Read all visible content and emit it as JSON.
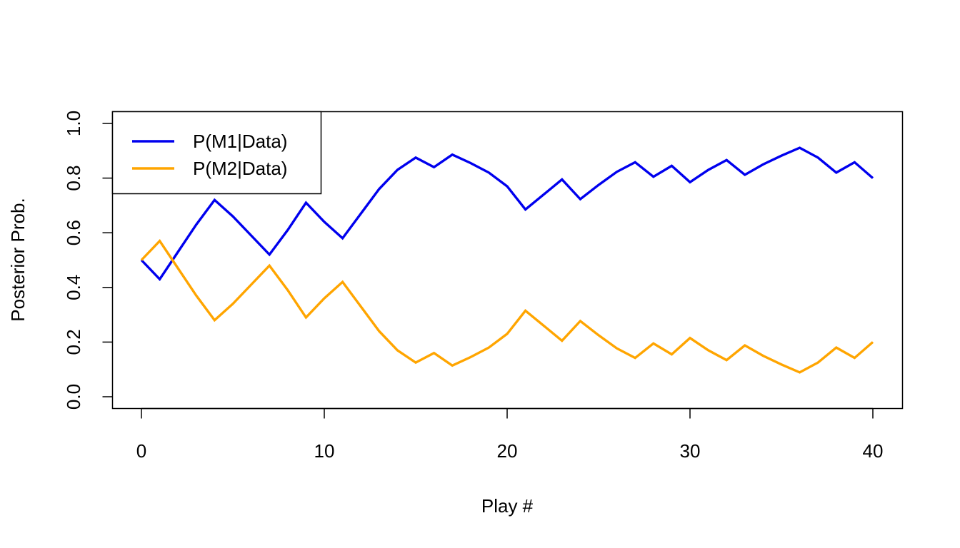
{
  "chart_data": {
    "type": "line",
    "title": "",
    "xlabel": "Play #",
    "ylabel": "Posterior Prob.",
    "xlim": [
      0,
      40
    ],
    "ylim": [
      0,
      1
    ],
    "x_ticks": [
      0,
      10,
      20,
      30,
      40
    ],
    "y_ticks": [
      "0.0",
      "0.2",
      "0.4",
      "0.6",
      "0.8",
      "1.0"
    ],
    "x_tick_labels": [
      "0",
      "10",
      "20",
      "30",
      "40"
    ],
    "grid": false,
    "legend": {
      "placement": "top-left",
      "entries": [
        "P(M1|Data)",
        "P(M2|Data)"
      ]
    },
    "x": [
      0,
      1,
      2,
      3,
      4,
      5,
      6,
      7,
      8,
      9,
      10,
      11,
      12,
      13,
      14,
      15,
      16,
      17,
      18,
      19,
      20,
      21,
      22,
      23,
      24,
      25,
      26,
      27,
      28,
      29,
      30,
      31,
      32,
      33,
      34,
      35,
      36,
      37,
      38,
      39,
      40
    ],
    "series": [
      {
        "name": "P(M1|Data)",
        "color": "#0000ee",
        "values": [
          0.5,
          0.43,
          0.53,
          0.63,
          0.72,
          0.66,
          0.59,
          0.52,
          0.61,
          0.71,
          0.64,
          0.58,
          0.67,
          0.76,
          0.83,
          0.875,
          0.84,
          0.886,
          0.855,
          0.82,
          0.77,
          0.685,
          0.74,
          0.795,
          0.723,
          0.775,
          0.823,
          0.858,
          0.805,
          0.845,
          0.785,
          0.83,
          0.866,
          0.812,
          0.85,
          0.882,
          0.911,
          0.875,
          0.82,
          0.858,
          0.8
        ]
      },
      {
        "name": "P(M2|Data)",
        "color": "#ffa500",
        "values": [
          0.5,
          0.57,
          0.47,
          0.37,
          0.28,
          0.34,
          0.41,
          0.48,
          0.39,
          0.29,
          0.36,
          0.42,
          0.33,
          0.24,
          0.17,
          0.125,
          0.16,
          0.114,
          0.145,
          0.18,
          0.23,
          0.315,
          0.26,
          0.205,
          0.277,
          0.225,
          0.177,
          0.142,
          0.195,
          0.155,
          0.215,
          0.17,
          0.134,
          0.188,
          0.15,
          0.118,
          0.089,
          0.125,
          0.18,
          0.142,
          0.2
        ]
      }
    ]
  }
}
